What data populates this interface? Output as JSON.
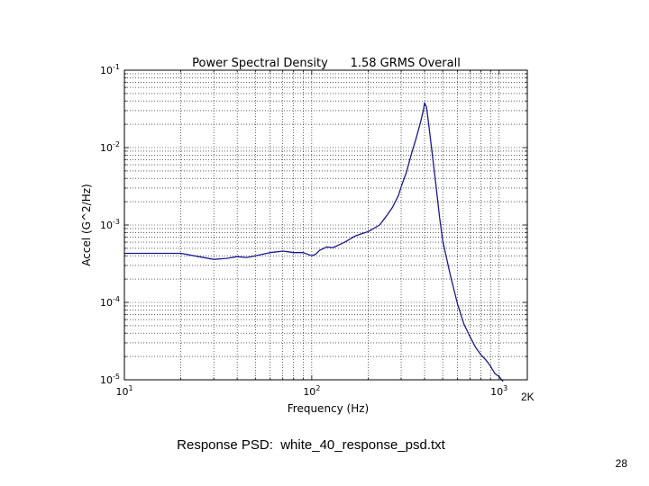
{
  "slide": {
    "caption": "Response PSD:  white_40_response_psd.txt",
    "page_number": "28"
  },
  "chart_data": {
    "type": "line",
    "title": "Power Spectral Density      1.58 GRMS Overall",
    "xlabel": "Frequency (Hz)",
    "ylabel": "Accel (G^2/Hz)",
    "xscale": "log",
    "yscale": "log",
    "xlim": [
      10,
      1414
    ],
    "ylim": [
      1e-05,
      0.1
    ],
    "grid": true,
    "grid_style": "dotted, major and minor",
    "xticks": [
      {
        "value": 10,
        "base": "10",
        "exp": "1"
      },
      {
        "value": 100,
        "base": "10",
        "exp": "2"
      },
      {
        "value": 1000,
        "base": "10",
        "exp": "3"
      }
    ],
    "yticks": [
      {
        "value": 0.1,
        "base": "10",
        "exp": "-1"
      },
      {
        "value": 0.01,
        "base": "10",
        "exp": "-2"
      },
      {
        "value": 0.001,
        "base": "10",
        "exp": "-3"
      },
      {
        "value": 0.0001,
        "base": "10",
        "exp": "-4"
      },
      {
        "value": 1e-05,
        "base": "10",
        "exp": "-5"
      }
    ],
    "annotation": {
      "text": "2K",
      "x": 1414
    },
    "line_color": "#1a1a8c",
    "series": [
      {
        "x": [
          10,
          15,
          20,
          25,
          30,
          35,
          40,
          45,
          50,
          55,
          60,
          65,
          70,
          75,
          80,
          90,
          100,
          105,
          110,
          120,
          130,
          150,
          170,
          200,
          230,
          250,
          270,
          290,
          300,
          320,
          340,
          360,
          380,
          395,
          400,
          410,
          420,
          440,
          460,
          480,
          500,
          550,
          600,
          650,
          700,
          750,
          800,
          850,
          900,
          950,
          1000,
          1050
        ],
        "y": [
          0.00043,
          0.00043,
          0.00043,
          0.00039,
          0.00036,
          0.00037,
          0.00039,
          0.00038,
          0.0004,
          0.00042,
          0.00044,
          0.00045,
          0.00046,
          0.00045,
          0.00044,
          0.00044,
          0.0004,
          0.00042,
          0.00047,
          0.00052,
          0.00051,
          0.0006,
          0.00072,
          0.00082,
          0.001,
          0.0013,
          0.0017,
          0.0024,
          0.0031,
          0.0048,
          0.0082,
          0.013,
          0.021,
          0.031,
          0.038,
          0.033,
          0.021,
          0.0082,
          0.0033,
          0.0013,
          0.00062,
          0.00022,
          9.5e-05,
          5.2e-05,
          3.6e-05,
          2.6e-05,
          2.1e-05,
          1.8e-05,
          1.5e-05,
          1.2e-05,
          1.1e-05,
          9.5e-06
        ]
      }
    ]
  }
}
